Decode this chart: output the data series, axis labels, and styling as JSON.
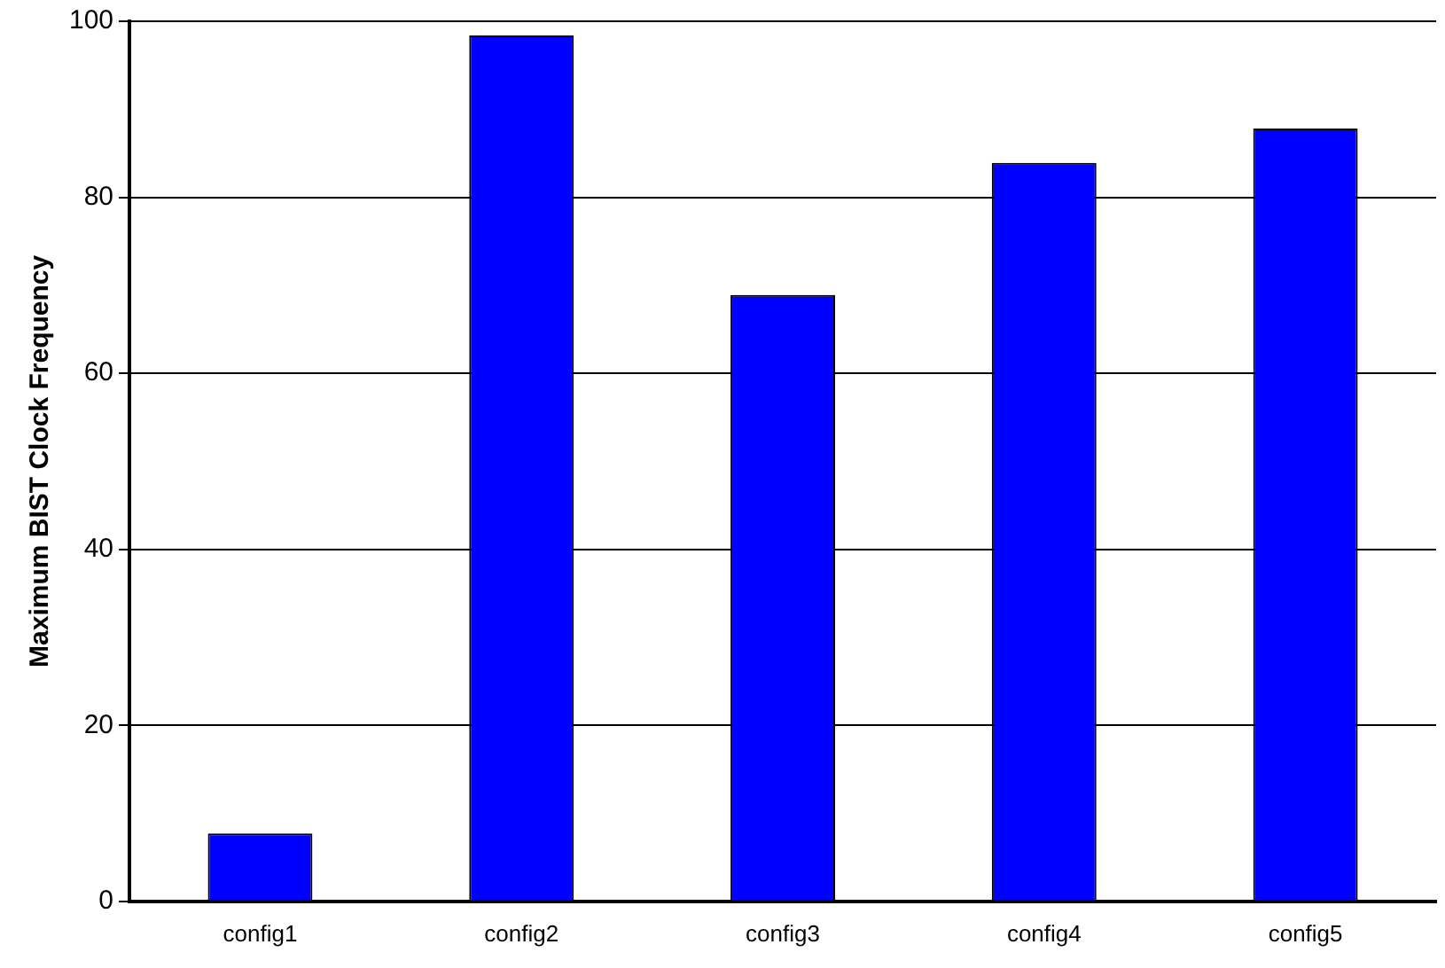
{
  "chart_data": {
    "type": "bar",
    "ylabel": "Maximum BIST Clock Frequency",
    "categories": [
      "config1",
      "config2",
      "config3",
      "config4",
      "config5"
    ],
    "values": [
      7.7,
      98.4,
      68.9,
      83.9,
      87.8
    ],
    "color": "#0000ff",
    "ylim": [
      0,
      100
    ],
    "yticks": [
      0,
      20,
      40,
      60,
      80,
      100
    ],
    "grid": "y",
    "legend": false
  }
}
